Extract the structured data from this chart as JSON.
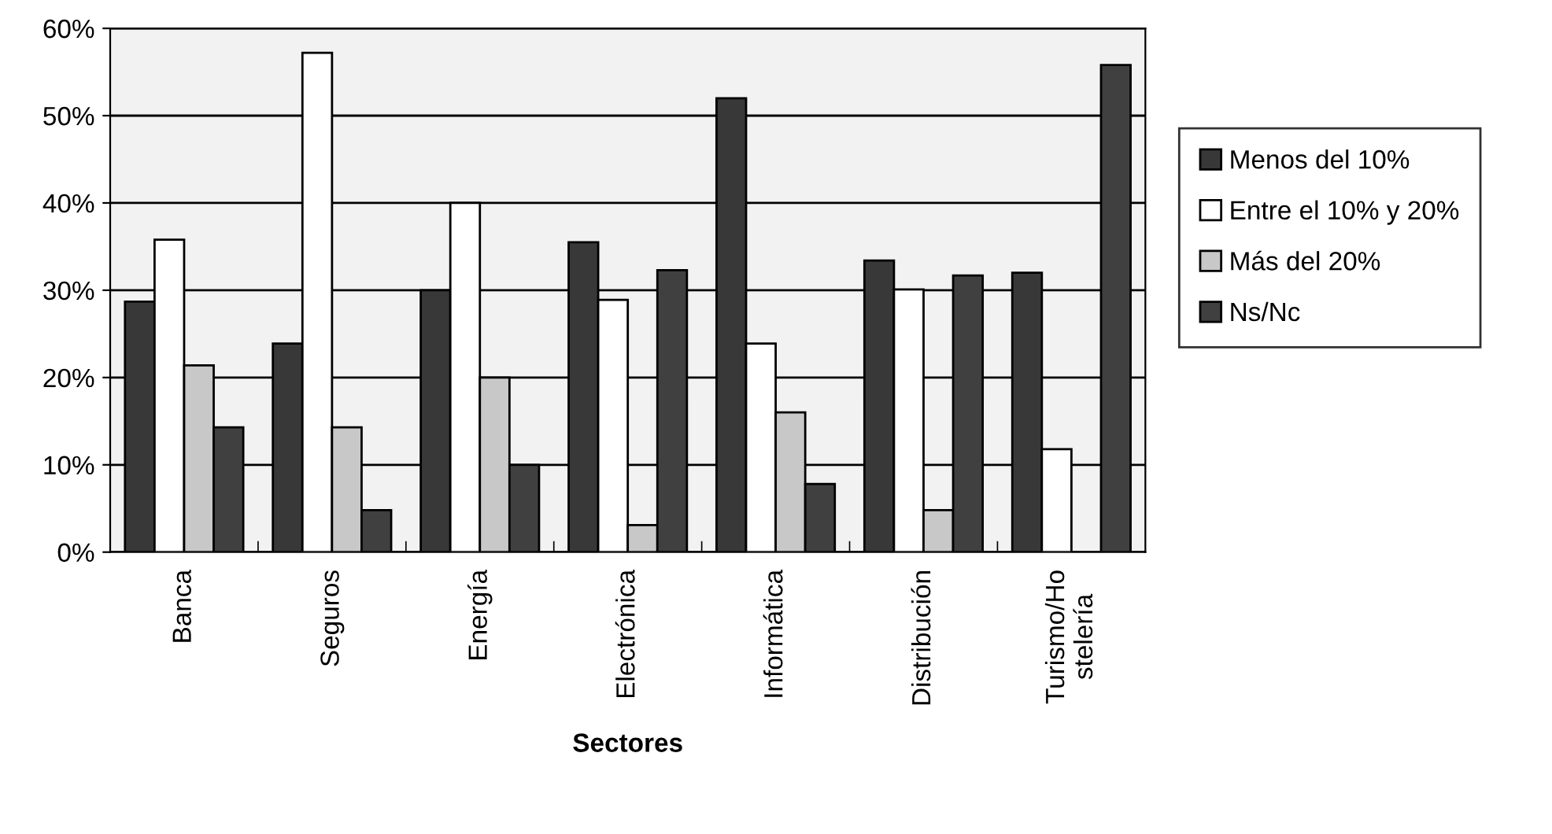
{
  "chart_data": {
    "type": "bar",
    "xlabel": "Sectores",
    "categories": [
      "Banca",
      "Seguros",
      "Energía",
      "Electrónica",
      "Informática",
      "Distribución",
      "Turismo/Hostelería"
    ],
    "series": [
      {
        "name": "Menos del 10%",
        "color": "#383838",
        "values": [
          28.7,
          23.9,
          30,
          35.5,
          52,
          33.4,
          32
        ]
      },
      {
        "name": "Entre el 10% y 20%",
        "color": "#ffffff",
        "values": [
          35.8,
          57.2,
          40,
          28.9,
          23.9,
          30.1,
          11.8
        ]
      },
      {
        "name": "Más del 20%",
        "color": "#c8c8c8",
        "values": [
          21.4,
          14.3,
          20,
          3.1,
          16,
          4.8,
          null
        ]
      },
      {
        "name": "Ns/Nc",
        "color": "#404040",
        "values": [
          14.3,
          4.8,
          10,
          32.3,
          7.8,
          31.7,
          55.8
        ]
      }
    ],
    "ylim": [
      0,
      60
    ],
    "yticks": [
      {
        "value": 0,
        "label": "0%"
      },
      {
        "value": 10,
        "label": "10%"
      },
      {
        "value": 20,
        "label": "20%"
      },
      {
        "value": 30,
        "label": "30%"
      },
      {
        "value": 40,
        "label": "40%"
      },
      {
        "value": 50,
        "label": "50%"
      },
      {
        "value": 60,
        "label": "60%"
      }
    ],
    "grid": "y",
    "legend": "right"
  }
}
